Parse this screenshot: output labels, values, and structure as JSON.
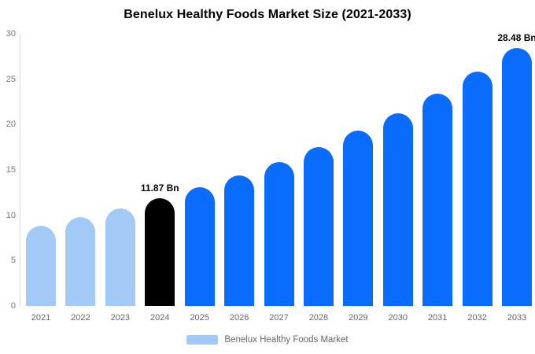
{
  "chart_data": {
    "type": "bar",
    "title": "Benelux Healthy Foods Market Size (2021-2033)",
    "categories": [
      "2021",
      "2022",
      "2023",
      "2024",
      "2025",
      "2026",
      "2027",
      "2028",
      "2029",
      "2030",
      "2031",
      "2032",
      "2033"
    ],
    "values": [
      8.87,
      9.77,
      10.77,
      11.87,
      13.08,
      14.42,
      15.89,
      17.51,
      19.3,
      21.27,
      23.44,
      25.84,
      28.48
    ],
    "unit": "Bn",
    "ylim": [
      0,
      30
    ],
    "yticks": [
      0,
      5,
      10,
      15,
      20,
      25,
      30
    ],
    "grid": false,
    "legend_position": "bottom",
    "palette": {
      "historical": "#a3c9f7",
      "base_year": "#000000",
      "forecast": "#0a6cfd"
    },
    "bar_colors": [
      "#a3c9f7",
      "#a3c9f7",
      "#a3c9f7",
      "#000000",
      "#0a6cfd",
      "#0a6cfd",
      "#0a6cfd",
      "#0a6cfd",
      "#0a6cfd",
      "#0a6cfd",
      "#0a6cfd",
      "#0a6cfd",
      "#0a6cfd"
    ],
    "annotations": [
      {
        "category": "2024",
        "text": "11.87 Bn"
      },
      {
        "category": "2033",
        "text": "28.48 Bn"
      }
    ],
    "legend": {
      "label": "Benelux Healthy Foods Market",
      "swatch_color": "#a3c9f7"
    },
    "axis_color": "#d9d9d9",
    "tick_label_color": "#777777"
  }
}
